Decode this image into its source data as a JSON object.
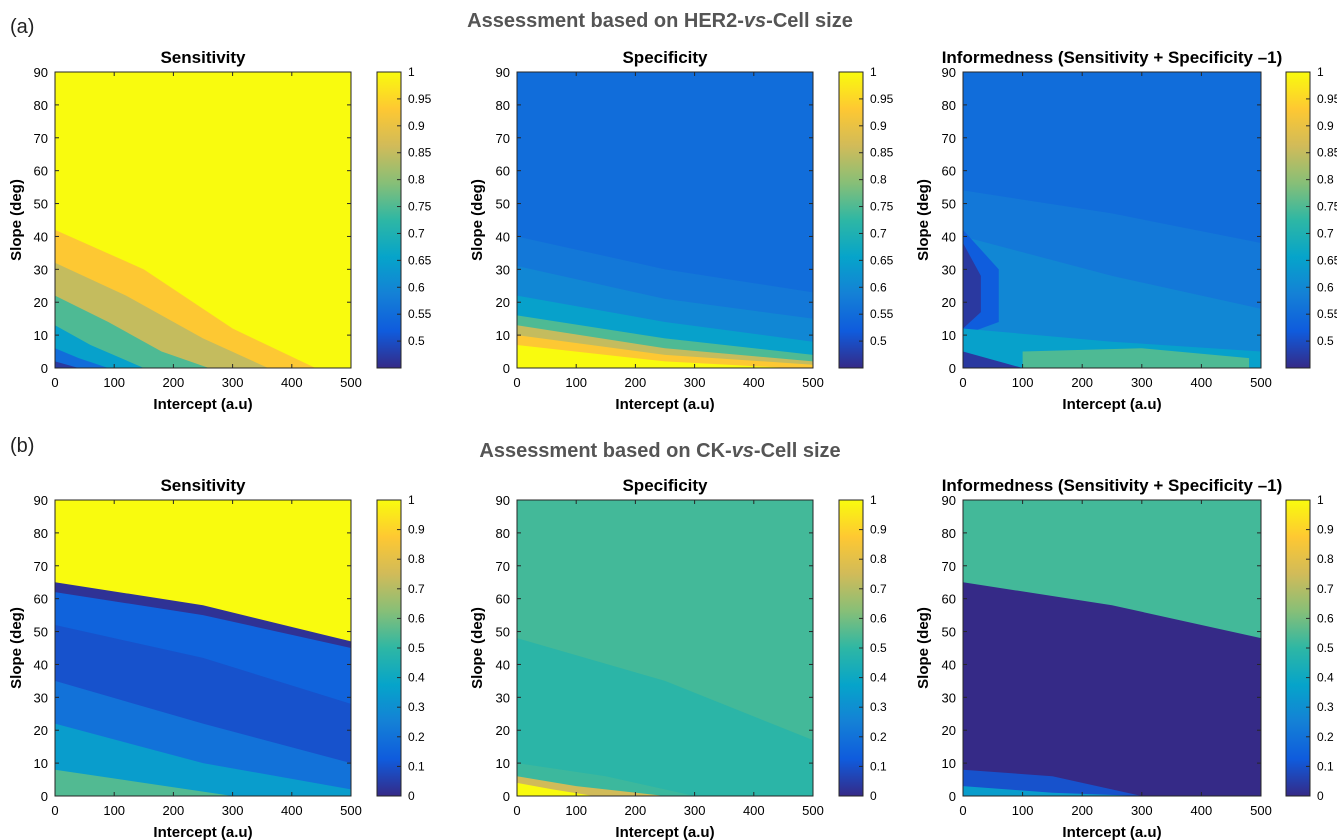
{
  "figure": {
    "rows": [
      {
        "label": "(a)",
        "title_parts": [
          "Assessment based on HER2-",
          "vs",
          "-Cell size"
        ],
        "x_label": "Intercept (a.u)",
        "y_label": "Slope (deg)"
      },
      {
        "label": "(b)",
        "title_parts": [
          "Assessment based on CK-",
          "vs",
          "-Cell size"
        ],
        "x_label": "Intercept (a.u)",
        "y_label": "Slope (deg)"
      }
    ]
  },
  "chart_data": [
    {
      "type": "heatmap",
      "row": 0,
      "col": 0,
      "title": "Sensitivity",
      "xlabel": "Intercept (a.u)",
      "ylabel": "Slope (deg)",
      "xlim": [
        0,
        500
      ],
      "ylim": [
        0,
        90
      ],
      "x_ticks": [
        0,
        100,
        200,
        300,
        400,
        500
      ],
      "y_ticks": [
        0,
        10,
        20,
        30,
        40,
        50,
        60,
        70,
        80,
        90
      ],
      "colorbar": {
        "range": [
          0.45,
          1.0
        ],
        "tick_values": [
          0.5,
          0.55,
          0.6,
          0.65,
          0.7,
          0.75,
          0.8,
          0.85,
          0.9,
          0.95,
          1.0
        ],
        "tick_labels": [
          "0.5",
          "0.55",
          "0.6",
          "0.65",
          "0.7",
          "0.75",
          "0.8",
          "0.85",
          "0.9",
          "0.95",
          "1"
        ]
      },
      "regions": [
        {
          "value": 1.0,
          "boundary": [
            [
              0,
              90
            ],
            [
              500,
              90
            ],
            [
              500,
              0
            ]
          ]
        },
        {
          "value": 0.93,
          "boundary": [
            [
              0,
              42
            ],
            [
              150,
              30
            ],
            [
              300,
              12
            ],
            [
              440,
              0
            ]
          ]
        },
        {
          "value": 0.85,
          "boundary": [
            [
              0,
              32
            ],
            [
              120,
              22
            ],
            [
              250,
              9
            ],
            [
              360,
              0
            ]
          ]
        },
        {
          "value": 0.75,
          "boundary": [
            [
              0,
              22
            ],
            [
              90,
              14
            ],
            [
              180,
              5
            ],
            [
              260,
              0
            ]
          ]
        },
        {
          "value": 0.65,
          "boundary": [
            [
              0,
              13
            ],
            [
              60,
              7
            ],
            [
              150,
              0
            ]
          ]
        },
        {
          "value": 0.55,
          "boundary": [
            [
              0,
              6
            ],
            [
              40,
              3
            ],
            [
              90,
              0
            ]
          ]
        },
        {
          "value": 0.47,
          "boundary": [
            [
              0,
              2
            ],
            [
              40,
              0
            ]
          ]
        }
      ]
    },
    {
      "type": "heatmap",
      "row": 0,
      "col": 1,
      "title": "Specificity",
      "xlabel": "Intercept (a.u)",
      "ylabel": "Slope (deg)",
      "xlim": [
        0,
        500
      ],
      "ylim": [
        0,
        90
      ],
      "x_ticks": [
        0,
        100,
        200,
        300,
        400,
        500
      ],
      "y_ticks": [
        0,
        10,
        20,
        30,
        40,
        50,
        60,
        70,
        80,
        90
      ],
      "colorbar": {
        "range": [
          0.45,
          1.0
        ],
        "tick_values": [
          0.5,
          0.55,
          0.6,
          0.65,
          0.7,
          0.75,
          0.8,
          0.85,
          0.9,
          0.95,
          1.0
        ],
        "tick_labels": [
          "0.5",
          "0.55",
          "0.6",
          "0.65",
          "0.7",
          "0.75",
          "0.8",
          "0.85",
          "0.9",
          "0.95",
          "1"
        ]
      },
      "regions": [
        {
          "value": 0.55,
          "boundary": [
            [
              0,
              90
            ],
            [
              500,
              90
            ],
            [
              500,
              0
            ]
          ]
        },
        {
          "value": 0.57,
          "boundary": [
            [
              0,
              40
            ],
            [
              250,
              30
            ],
            [
              500,
              23
            ]
          ]
        },
        {
          "value": 0.6,
          "boundary": [
            [
              0,
              31
            ],
            [
              250,
              21
            ],
            [
              500,
              15
            ]
          ]
        },
        {
          "value": 0.65,
          "boundary": [
            [
              0,
              22
            ],
            [
              250,
              14
            ],
            [
              500,
              8
            ]
          ]
        },
        {
          "value": 0.75,
          "boundary": [
            [
              0,
              16
            ],
            [
              250,
              9
            ],
            [
              500,
              4
            ]
          ]
        },
        {
          "value": 0.85,
          "boundary": [
            [
              0,
              13
            ],
            [
              250,
              6
            ],
            [
              500,
              2
            ]
          ]
        },
        {
          "value": 0.93,
          "boundary": [
            [
              0,
              10
            ],
            [
              250,
              4
            ],
            [
              500,
              1
            ]
          ]
        },
        {
          "value": 1.0,
          "boundary": [
            [
              0,
              7
            ],
            [
              250,
              2
            ],
            [
              460,
              0
            ]
          ]
        }
      ]
    },
    {
      "type": "heatmap",
      "row": 0,
      "col": 2,
      "title": "Informedness (Sensitivity + Specificity –1)",
      "xlabel": "Intercept (a.u)",
      "ylabel": "Slope (deg)",
      "xlim": [
        0,
        500
      ],
      "ylim": [
        0,
        90
      ],
      "x_ticks": [
        0,
        100,
        200,
        300,
        400,
        500
      ],
      "y_ticks": [
        0,
        10,
        20,
        30,
        40,
        50,
        60,
        70,
        80,
        90
      ],
      "colorbar": {
        "range": [
          0.45,
          1.0
        ],
        "tick_values": [
          0.5,
          0.55,
          0.6,
          0.65,
          0.7,
          0.75,
          0.8,
          0.85,
          0.9,
          0.95,
          1.0
        ],
        "tick_labels": [
          "0.5",
          "0.55",
          "0.6",
          "0.65",
          "0.7",
          "0.75",
          "0.8",
          "0.85",
          "0.9",
          "0.95",
          "1"
        ]
      },
      "regions": [
        {
          "value": 0.55,
          "boundary": [
            [
              0,
              90
            ],
            [
              500,
              90
            ],
            [
              500,
              0
            ]
          ]
        },
        {
          "value": 0.57,
          "boundary": [
            [
              0,
              54
            ],
            [
              250,
              47
            ],
            [
              500,
              38
            ]
          ]
        },
        {
          "value": 0.6,
          "boundary": [
            [
              0,
              40
            ],
            [
              250,
              28
            ],
            [
              500,
              18
            ]
          ]
        },
        {
          "value": 0.52,
          "boundary": [
            [
              0,
              42
            ],
            [
              60,
              30
            ],
            [
              60,
              14
            ],
            [
              0,
              10
            ]
          ]
        },
        {
          "value": 0.47,
          "boundary": [
            [
              0,
              38
            ],
            [
              30,
              28
            ],
            [
              30,
              17
            ],
            [
              0,
              12
            ]
          ]
        },
        {
          "value": 0.65,
          "boundary": [
            [
              0,
              12
            ],
            [
              250,
              8
            ],
            [
              500,
              5
            ]
          ]
        },
        {
          "value": 0.75,
          "boundary": [
            [
              100,
              5
            ],
            [
              300,
              6
            ],
            [
              480,
              3
            ]
          ]
        },
        {
          "value": 0.47,
          "boundary": [
            [
              0,
              5
            ],
            [
              100,
              0
            ]
          ]
        }
      ]
    },
    {
      "type": "heatmap",
      "row": 1,
      "col": 0,
      "title": "Sensitivity",
      "xlabel": "Intercept (a.u)",
      "ylabel": "Slope (deg)",
      "xlim": [
        0,
        500
      ],
      "ylim": [
        0,
        90
      ],
      "x_ticks": [
        0,
        100,
        200,
        300,
        400,
        500
      ],
      "y_ticks": [
        0,
        10,
        20,
        30,
        40,
        50,
        60,
        70,
        80,
        90
      ],
      "colorbar": {
        "range": [
          0,
          1.0
        ],
        "tick_values": [
          0,
          0.1,
          0.2,
          0.3,
          0.4,
          0.5,
          0.6,
          0.7,
          0.8,
          0.9,
          1.0
        ],
        "tick_labels": [
          "0",
          "0.1",
          "0.2",
          "0.3",
          "0.4",
          "0.5",
          "0.6",
          "0.7",
          "0.8",
          "0.9",
          "1"
        ]
      },
      "regions": [
        {
          "value": 1.0,
          "boundary": [
            [
              0,
              90
            ],
            [
              500,
              90
            ],
            [
              500,
              47
            ]
          ]
        },
        {
          "value": 0.02,
          "boundary": [
            [
              0,
              65
            ],
            [
              250,
              58
            ],
            [
              500,
              47
            ]
          ]
        },
        {
          "value": 0.15,
          "boundary": [
            [
              0,
              62
            ],
            [
              250,
              55
            ],
            [
              500,
              45
            ]
          ]
        },
        {
          "value": 0.1,
          "boundary": [
            [
              0,
              52
            ],
            [
              250,
              42
            ],
            [
              500,
              28
            ]
          ]
        },
        {
          "value": 0.2,
          "boundary": [
            [
              0,
              35
            ],
            [
              250,
              22
            ],
            [
              500,
              10
            ]
          ]
        },
        {
          "value": 0.35,
          "boundary": [
            [
              0,
              22
            ],
            [
              250,
              10
            ],
            [
              500,
              2
            ]
          ]
        },
        {
          "value": 0.55,
          "boundary": [
            [
              0,
              8
            ],
            [
              150,
              4
            ],
            [
              300,
              0
            ]
          ]
        }
      ]
    },
    {
      "type": "heatmap",
      "row": 1,
      "col": 1,
      "title": "Specificity",
      "xlabel": "Intercept (a.u)",
      "ylabel": "Slope (deg)",
      "xlim": [
        0,
        500
      ],
      "ylim": [
        0,
        90
      ],
      "x_ticks": [
        0,
        100,
        200,
        300,
        400,
        500
      ],
      "y_ticks": [
        0,
        10,
        20,
        30,
        40,
        50,
        60,
        70,
        80,
        90
      ],
      "colorbar": {
        "range": [
          0,
          1.0
        ],
        "tick_values": [
          0,
          0.1,
          0.2,
          0.3,
          0.4,
          0.5,
          0.6,
          0.7,
          0.8,
          0.9,
          1.0
        ],
        "tick_labels": [
          "0",
          "0.1",
          "0.2",
          "0.3",
          "0.4",
          "0.5",
          "0.6",
          "0.7",
          "0.8",
          "0.9",
          "1"
        ]
      },
      "regions": [
        {
          "value": 0.53,
          "boundary": [
            [
              0,
              90
            ],
            [
              500,
              90
            ],
            [
              500,
              0
            ]
          ]
        },
        {
          "value": 0.49,
          "boundary": [
            [
              0,
              48
            ],
            [
              250,
              35
            ],
            [
              500,
              17
            ]
          ]
        },
        {
          "value": 0.52,
          "boundary": [
            [
              0,
              10
            ],
            [
              150,
              6
            ],
            [
              300,
              0
            ]
          ]
        },
        {
          "value": 0.75,
          "boundary": [
            [
              0,
              6
            ],
            [
              100,
              3
            ],
            [
              250,
              0
            ]
          ]
        },
        {
          "value": 1.0,
          "boundary": [
            [
              0,
              4
            ],
            [
              60,
              2
            ],
            [
              130,
              0
            ]
          ]
        }
      ]
    },
    {
      "type": "heatmap",
      "row": 1,
      "col": 2,
      "title": "Informedness (Sensitivity + Specificity –1)",
      "xlabel": "Intercept (a.u)",
      "ylabel": "Slope (deg)",
      "xlim": [
        0,
        500
      ],
      "ylim": [
        0,
        90
      ],
      "x_ticks": [
        0,
        100,
        200,
        300,
        400,
        500
      ],
      "y_ticks": [
        0,
        10,
        20,
        30,
        40,
        50,
        60,
        70,
        80,
        90
      ],
      "colorbar": {
        "range": [
          0,
          1.0
        ],
        "tick_values": [
          0,
          0.1,
          0.2,
          0.3,
          0.4,
          0.5,
          0.6,
          0.7,
          0.8,
          0.9,
          1.0
        ],
        "tick_labels": [
          "0",
          "0.1",
          "0.2",
          "0.3",
          "0.4",
          "0.5",
          "0.6",
          "0.7",
          "0.8",
          "0.9",
          "1"
        ]
      },
      "regions": [
        {
          "value": 0.53,
          "boundary": [
            [
              0,
              90
            ],
            [
              500,
              90
            ],
            [
              500,
              48
            ]
          ]
        },
        {
          "value": 0.0,
          "boundary": [
            [
              0,
              65
            ],
            [
              250,
              58
            ],
            [
              500,
              48
            ]
          ]
        },
        {
          "value": 0.1,
          "boundary": [
            [
              0,
              8
            ],
            [
              150,
              6
            ],
            [
              300,
              0
            ]
          ]
        },
        {
          "value": 0.35,
          "boundary": [
            [
              0,
              3
            ],
            [
              150,
              1
            ],
            [
              300,
              0
            ]
          ]
        }
      ]
    }
  ],
  "colors": {
    "parula": [
      "#352a87",
      "#0f5cdd",
      "#1481d6",
      "#06a4ca",
      "#2eb7a4",
      "#87bf77",
      "#d1bb59",
      "#fec832",
      "#f9fb0e"
    ]
  }
}
